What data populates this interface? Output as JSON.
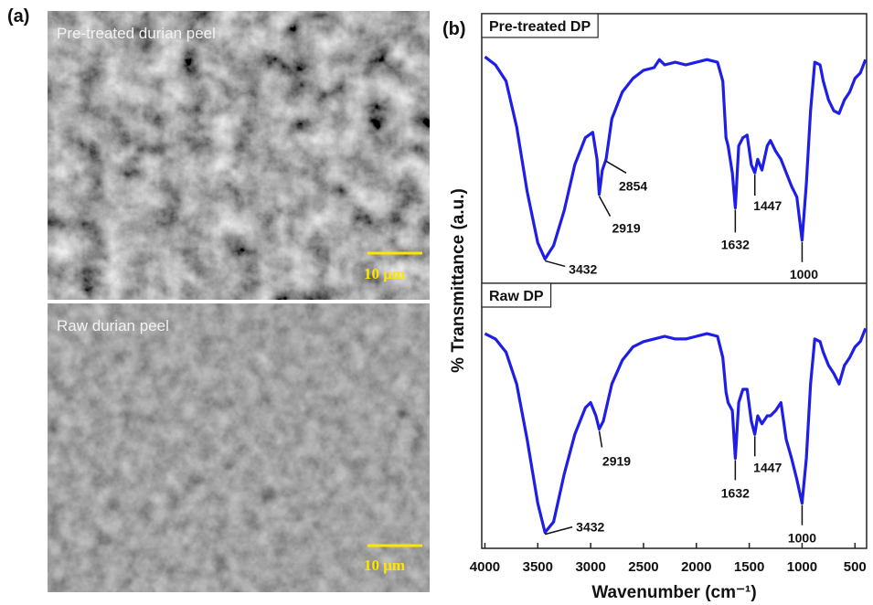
{
  "panel_a": {
    "label": "(a)",
    "images": [
      {
        "caption": "Pre-treated durian peel",
        "scale_bar": "10 μm"
      },
      {
        "caption": "Raw durian peel",
        "scale_bar": "10 μm"
      }
    ]
  },
  "panel_b_label": "(b)",
  "chart_data": [
    {
      "type": "line",
      "title": "Pre-treated DP",
      "color": "#1e1ee6",
      "xlim": [
        4030,
        390
      ],
      "ylim": [
        0,
        100
      ],
      "x": [
        4000,
        3900,
        3800,
        3700,
        3600,
        3500,
        3432,
        3350,
        3250,
        3150,
        3050,
        2980,
        2940,
        2919,
        2890,
        2854,
        2800,
        2700,
        2600,
        2500,
        2400,
        2350,
        2300,
        2200,
        2100,
        2000,
        1900,
        1800,
        1750,
        1720,
        1700,
        1660,
        1632,
        1600,
        1560,
        1520,
        1480,
        1447,
        1420,
        1380,
        1330,
        1300,
        1250,
        1200,
        1150,
        1100,
        1050,
        1000,
        960,
        920,
        880,
        830,
        800,
        750,
        700,
        650,
        600,
        550,
        500,
        450,
        400
      ],
      "values": [
        84,
        81,
        75,
        58,
        34,
        15,
        9,
        14,
        27,
        44,
        54,
        56,
        46,
        33,
        42,
        46,
        61,
        71,
        76,
        79,
        80,
        83,
        81,
        82,
        81,
        82,
        83,
        82,
        75,
        54,
        51,
        41,
        28,
        51,
        54,
        55,
        44,
        41,
        46,
        42,
        51,
        53,
        49,
        46,
        41,
        36,
        32,
        16,
        37,
        64,
        82,
        81,
        75,
        68,
        64,
        63,
        68,
        71,
        76,
        78,
        83
      ],
      "annotations": [
        {
          "text": "3432",
          "x": 3432
        },
        {
          "text": "2919",
          "x": 2919
        },
        {
          "text": "2854",
          "x": 2854
        },
        {
          "text": "1632",
          "x": 1632
        },
        {
          "text": "1447",
          "x": 1447
        },
        {
          "text": "1000",
          "x": 1000
        }
      ]
    },
    {
      "type": "line",
      "title": "Raw DP",
      "color": "#1e1ee6",
      "xlim": [
        4030,
        390
      ],
      "ylim": [
        0,
        100
      ],
      "xticks": [
        4000,
        3500,
        3000,
        2500,
        2000,
        1500,
        1000,
        500
      ],
      "xlabel": "Wavenumber (cm⁻¹)",
      "ylabel": "% Transmittance (a.u.)",
      "x": [
        4000,
        3900,
        3800,
        3700,
        3600,
        3500,
        3432,
        3350,
        3250,
        3150,
        3050,
        3000,
        2950,
        2919,
        2880,
        2800,
        2700,
        2600,
        2500,
        2400,
        2300,
        2200,
        2100,
        2000,
        1900,
        1800,
        1750,
        1720,
        1700,
        1660,
        1632,
        1600,
        1560,
        1520,
        1480,
        1447,
        1420,
        1380,
        1330,
        1300,
        1250,
        1200,
        1150,
        1100,
        1050,
        1000,
        960,
        920,
        880,
        830,
        800,
        750,
        700,
        650,
        600,
        550,
        500,
        450,
        400
      ],
      "values": [
        81,
        79,
        74,
        62,
        41,
        17,
        6,
        10,
        28,
        43,
        53,
        55,
        50,
        45,
        48,
        62,
        71,
        76,
        78,
        79,
        80,
        79,
        79,
        80,
        81,
        80,
        72,
        59,
        55,
        52,
        34,
        55,
        60,
        60,
        48,
        43,
        50,
        47,
        50,
        50,
        52,
        55,
        41,
        34,
        26,
        17,
        34,
        62,
        79,
        78,
        74,
        69,
        66,
        62,
        69,
        72,
        76,
        78,
        83
      ],
      "annotations": [
        {
          "text": "2919",
          "x": 2919
        },
        {
          "text": "1632",
          "x": 1632
        },
        {
          "text": "1447",
          "x": 1447
        },
        {
          "text": "1000",
          "x": 1000
        },
        {
          "text": "3432",
          "x": 3432
        }
      ]
    }
  ]
}
